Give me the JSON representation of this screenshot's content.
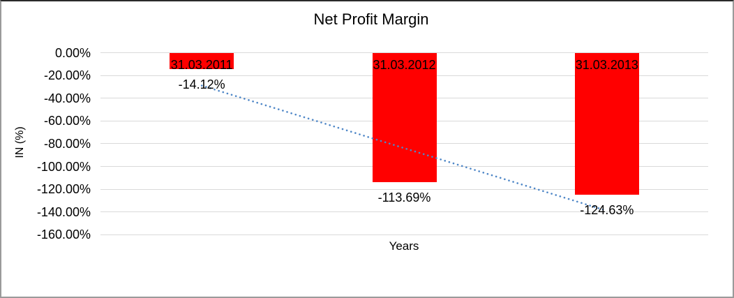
{
  "window": {
    "background": "#ffffff",
    "border_color": "#9a9a9a"
  },
  "chart_data": {
    "type": "bar",
    "title": "Net Profit Margin",
    "xlabel": "Years",
    "ylabel": "IN (%)",
    "categories": [
      "31.03.2011",
      "31.03.2012",
      "31.03.2013"
    ],
    "series": [
      {
        "name": "Net Profit Margin",
        "values": [
          -14.12,
          -113.69,
          -124.63
        ],
        "color": "#FF0000"
      }
    ],
    "data_labels": [
      "-14.12%",
      "-113.69%",
      "-124.63%"
    ],
    "ylim": [
      0,
      -160
    ],
    "yticks": [
      {
        "label": "0.00%",
        "value": 0
      },
      {
        "label": "-20.00%",
        "value": -20
      },
      {
        "label": "-40.00%",
        "value": -40
      },
      {
        "label": "-60.00%",
        "value": -60
      },
      {
        "label": "-80.00%",
        "value": -80
      },
      {
        "label": "-100.00%",
        "value": -100
      },
      {
        "label": "-120.00%",
        "value": -120
      },
      {
        "label": "-140.00%",
        "value": -140
      },
      {
        "label": "-160.00%",
        "value": -160
      }
    ],
    "grid": true,
    "grid_color": "#D9D9D9",
    "legend_position": "none",
    "trendline": {
      "type": "linear",
      "style": "dotted",
      "color": "#4F87C7",
      "start_value": -28.9,
      "end_value": -139.0
    }
  }
}
